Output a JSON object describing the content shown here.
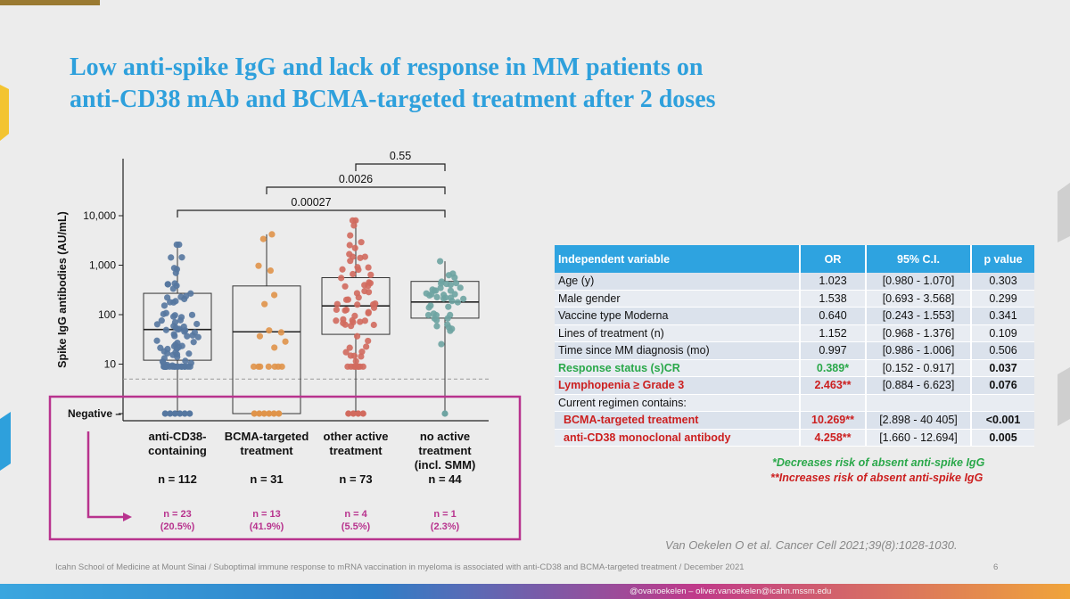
{
  "slide": {
    "title_line1": "Low anti-spike IgG and lack of response in MM patients on",
    "title_line2": "anti-CD38 mAb and BCMA-targeted treatment after 2 doses"
  },
  "chart_data": {
    "type": "scatter",
    "ylabel": "Spike IgG antibodies (AU/mL)",
    "yscale": "log",
    "ylim": [
      2,
      100000
    ],
    "y_ticks": [
      "10,000",
      "1,000",
      "100",
      "10"
    ],
    "negative_label": "Negative",
    "negative_threshold": 5,
    "categories": [
      {
        "label1": "anti-CD38-",
        "label2": "containing",
        "label3": "",
        "n": "n = 112",
        "neg": "n = 23",
        "neg_pct": "(20.5%)",
        "color": "#5577a0",
        "median": 50,
        "q1": 12,
        "q3": 270,
        "whisker_high": 2600,
        "n_points": 112
      },
      {
        "label1": "BCMA-targeted",
        "label2": "treatment",
        "label3": "",
        "n": "n = 31",
        "neg": "n = 13",
        "neg_pct": "(41.9%)",
        "color": "#e0944a",
        "median": 45,
        "q1": 0,
        "q3": 380,
        "whisker_high": 4200,
        "n_points": 31
      },
      {
        "label1": "other active",
        "label2": "treatment",
        "label3": "",
        "n": "n = 73",
        "neg": "n = 4",
        "neg_pct": "(5.5%)",
        "color": "#d26a5e",
        "median": 150,
        "q1": 40,
        "q3": 560,
        "whisker_high": 8000,
        "n_points": 73
      },
      {
        "label1": "no active",
        "label2": "treatment",
        "label3": "(incl. SMM)",
        "n": "n = 44",
        "neg": "n = 1",
        "neg_pct": "(2.3%)",
        "color": "#6ea4a2",
        "median": 180,
        "q1": 85,
        "q3": 470,
        "whisker_high": 1200,
        "n_points": 44
      }
    ],
    "comparisons": [
      {
        "from": 0,
        "to": 3,
        "label": "0.00027"
      },
      {
        "from": 1,
        "to": 3,
        "label": "0.0026"
      },
      {
        "from": 2,
        "to": 3,
        "label": "0.55"
      }
    ]
  },
  "table": {
    "headers": [
      "Independent variable",
      "OR",
      "95% C.I.",
      "p value"
    ],
    "rows": [
      {
        "var": "Age (y)",
        "or": "1.023",
        "ci": "[0.980 - 1.070]",
        "p": "0.303",
        "style": ""
      },
      {
        "var": "Male gender",
        "or": "1.538",
        "ci": "[0.693 - 3.568]",
        "p": "0.299",
        "style": ""
      },
      {
        "var": "Vaccine type Moderna",
        "or": "0.640",
        "ci": "[0.243 - 1.553]",
        "p": "0.341",
        "style": ""
      },
      {
        "var": "Lines of treatment (n)",
        "or": "1.152",
        "ci": "[0.968 - 1.376]",
        "p": "0.109",
        "style": ""
      },
      {
        "var": "Time since MM diagnosis (mo)",
        "or": "0.997",
        "ci": "[0.986 - 1.006]",
        "p": "0.506",
        "style": ""
      },
      {
        "var": "Response status (s)CR",
        "or": "0.389*",
        "ci": "[0.152 - 0.917]",
        "p": "0.037",
        "style": "green"
      },
      {
        "var": "Lymphopenia ≥ Grade 3",
        "or": "2.463**",
        "ci": "[0.884 - 6.623]",
        "p": "0.076",
        "style": "red"
      },
      {
        "var": "Current regimen contains:",
        "or": "",
        "ci": "",
        "p": "",
        "style": ""
      },
      {
        "var": "BCMA-targeted treatment",
        "or": "10.269**",
        "ci": "[2.898 - 40 405]",
        "p": "<0.001",
        "style": "red-indent"
      },
      {
        "var": "anti-CD38 monoclonal antibody",
        "or": "4.258**",
        "ci": "[1.660 - 12.694]",
        "p": "0.005",
        "style": "red-indent"
      }
    ],
    "note1": "*Decreases risk of absent anti-spike IgG",
    "note2": "**Increases risk of absent anti-spike IgG"
  },
  "colors": {
    "accent": "#2ea0dc",
    "highlight": "#b8338e",
    "green": "#2aa84a",
    "red": "#cc1f1f"
  },
  "citation": "Van Oekelen O et al. Cancer Cell 2021;39(8):1028-1030.",
  "footer": "Icahn School of Medicine at Mount Sinai / Suboptimal immune response to mRNA vaccination in myeloma is associated with anti-CD38 and BCMA-targeted treatment / December 2021",
  "page_number": "6",
  "email": "@ovanoekelen – oliver.vanoekelen@icahn.mssm.edu"
}
